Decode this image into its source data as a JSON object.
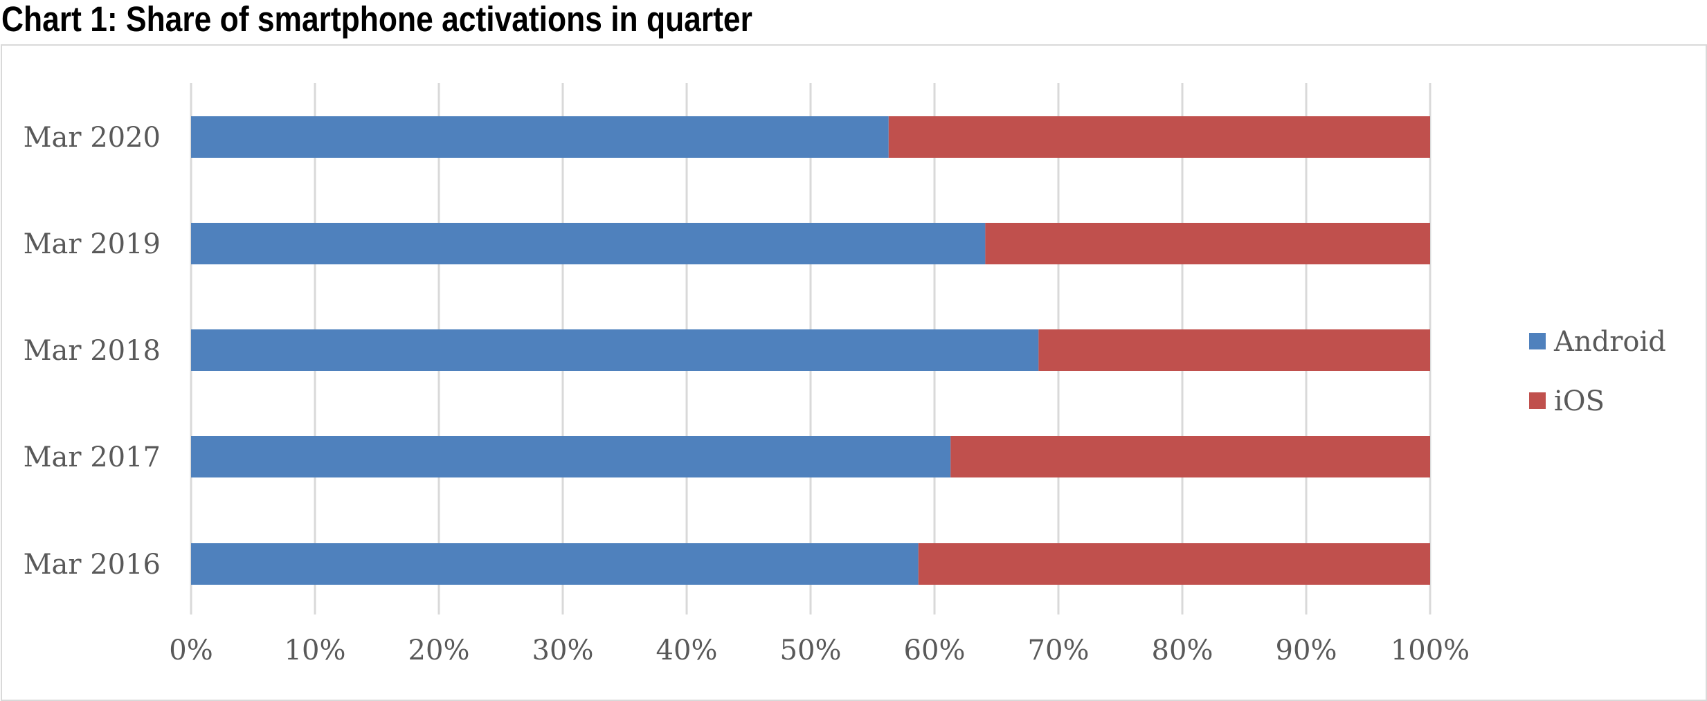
{
  "title": "Chart 1: Share of smartphone activations in quarter",
  "chart_data": {
    "type": "bar",
    "orientation": "horizontal",
    "stacked": "percent",
    "categories": [
      "Mar 2016",
      "Mar 2017",
      "Mar 2018",
      "Mar 2019",
      "Mar 2020"
    ],
    "series": [
      {
        "name": "Android",
        "color": "#4f81bd",
        "values": [
          58.7,
          61.3,
          68.4,
          64.1,
          56.3
        ]
      },
      {
        "name": "iOS",
        "color": "#c0504d",
        "values": [
          41.3,
          38.7,
          31.6,
          35.9,
          43.7
        ]
      }
    ],
    "x_ticks": [
      "0%",
      "10%",
      "20%",
      "30%",
      "40%",
      "50%",
      "60%",
      "70%",
      "80%",
      "90%",
      "100%"
    ],
    "xlim": [
      0,
      100
    ],
    "grid": "vertical",
    "legend_position": "right"
  }
}
